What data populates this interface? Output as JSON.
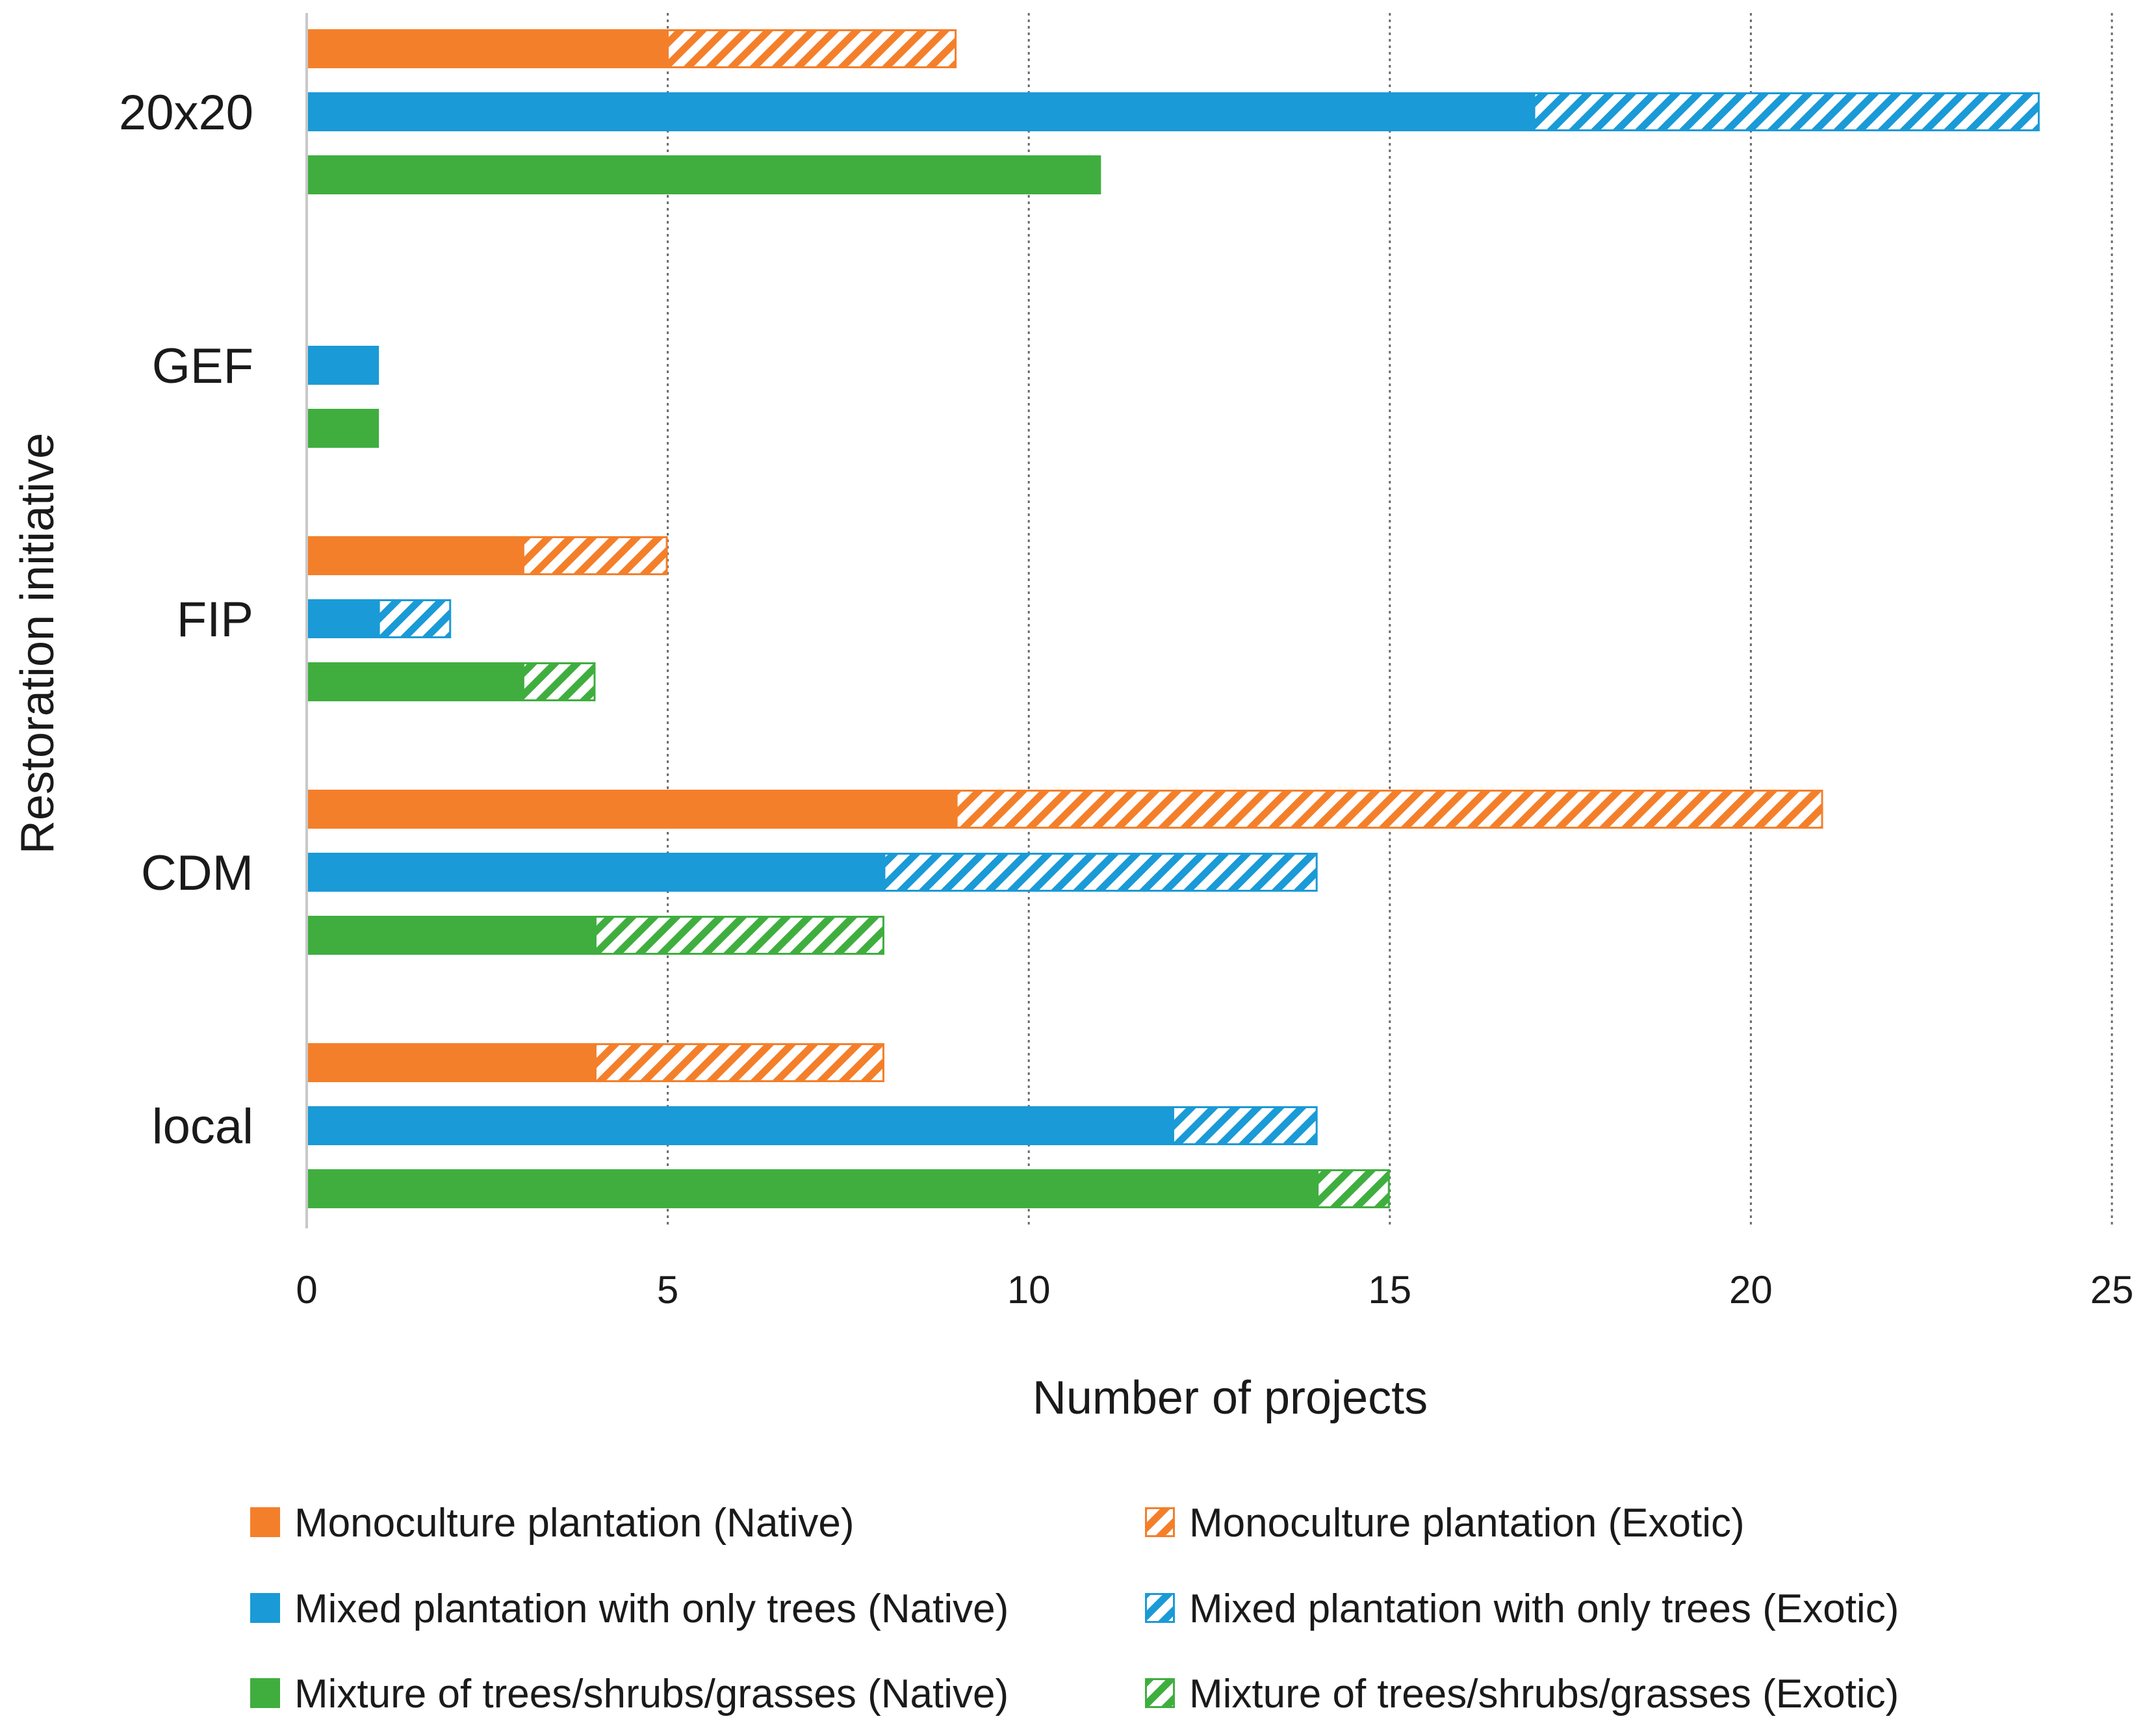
{
  "chart_data": {
    "type": "bar",
    "orientation": "horizontal",
    "stacked": true,
    "title": "",
    "xlabel": "Number of projects",
    "ylabel": "Restoration initiative",
    "xlim": [
      0,
      25
    ],
    "xticks": [
      0,
      5,
      10,
      15,
      20,
      25
    ],
    "grid": true,
    "legend_position": "bottom",
    "categories": [
      "20x20",
      "GEF",
      "FIP",
      "CDM",
      "local"
    ],
    "groups": [
      {
        "name": "Monoculture plantation",
        "color": "#f47f2a"
      },
      {
        "name": "Mixed plantation with only trees",
        "color": "#1a9ad6"
      },
      {
        "name": "Mixture of trees/shrubs/grasses",
        "color": "#3fae3f"
      }
    ],
    "series": [
      {
        "name": "Monoculture plantation (Native)",
        "group": 0,
        "pattern": "solid",
        "values": [
          5,
          0,
          3,
          9,
          4
        ]
      },
      {
        "name": "Monoculture plantation (Exotic)",
        "group": 0,
        "pattern": "hatched",
        "values": [
          4,
          0,
          2,
          12,
          4
        ]
      },
      {
        "name": "Mixed plantation with only trees (Native)",
        "group": 1,
        "pattern": "solid",
        "values": [
          17,
          1,
          1,
          8,
          12
        ]
      },
      {
        "name": "Mixed plantation with only trees (Exotic)",
        "group": 1,
        "pattern": "hatched",
        "values": [
          7,
          0,
          1,
          6,
          2
        ]
      },
      {
        "name": "Mixture of trees/shrubs/grasses (Native)",
        "group": 2,
        "pattern": "solid",
        "values": [
          11,
          1,
          3,
          4,
          14
        ]
      },
      {
        "name": "Mixture of trees/shrubs/grasses (Exotic)",
        "group": 2,
        "pattern": "hatched",
        "values": [
          0,
          0,
          1,
          4,
          1
        ]
      }
    ]
  }
}
